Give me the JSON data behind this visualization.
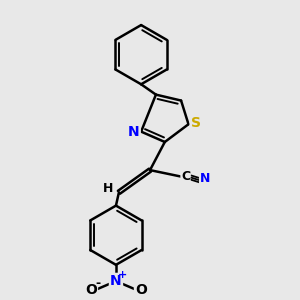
{
  "background_color": "#e8e8e8",
  "bond_color": "#000000",
  "N_color": "#0000ff",
  "S_color": "#ccaa00",
  "figsize": [
    3.0,
    3.0
  ],
  "dpi": 100,
  "xlim": [
    0,
    10
  ],
  "ylim": [
    0,
    10
  ]
}
